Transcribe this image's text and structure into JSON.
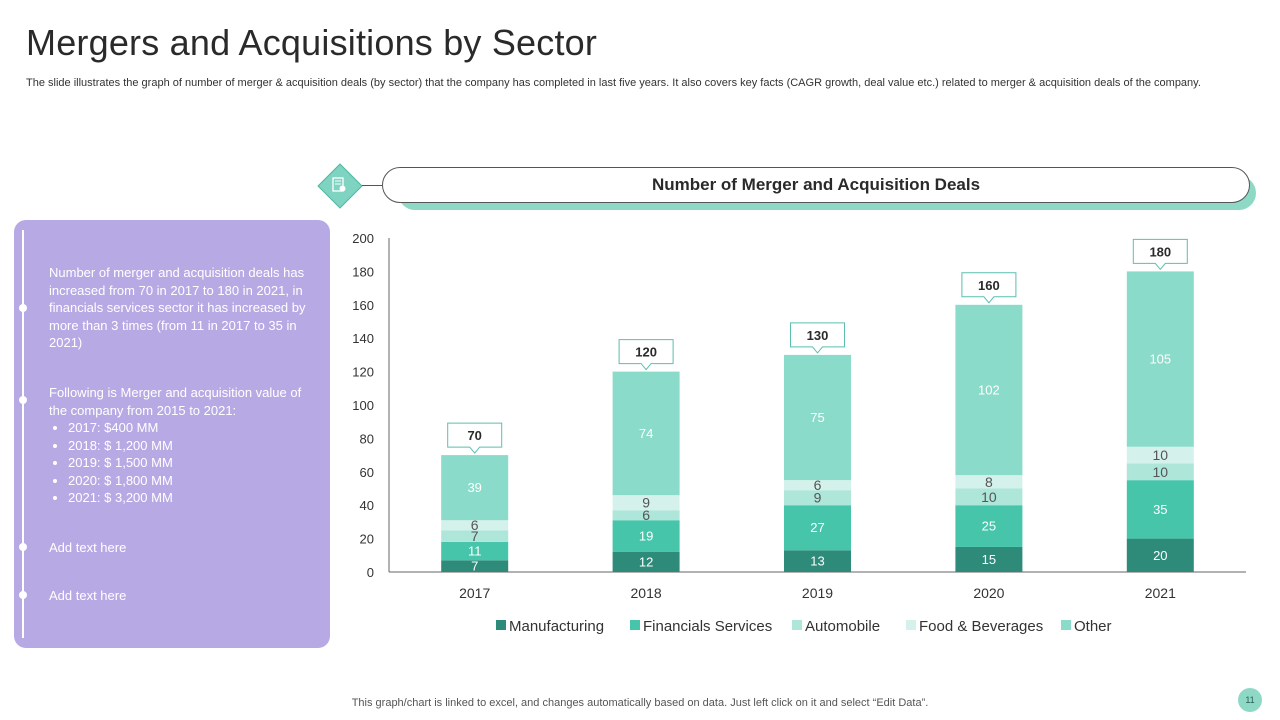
{
  "page": {
    "title": "Mergers and Acquisitions by Sector",
    "subtitle": "The slide illustrates the graph of number of merger & acquisition deals (by sector) that the company has completed in last five years. It also covers key facts (CAGR growth, deal value etc.) related to merger & acquisition deals of the company.",
    "footer": "This graph/chart is linked to excel, and changes automatically based on data. Just left click on it and select “Edit Data”.",
    "page_number": "11"
  },
  "chart_header": {
    "title": "Number of Merger and Acquisition Deals",
    "icon": "document-chart-icon"
  },
  "panel": {
    "point1": "Number of merger and acquisition deals has increased from 70 in 2017 to 180 in 2021, in financials services sector it has increased by more than 3 times (from 11 in 2017 to 35 in 2021)",
    "point2_intro": "Following is Merger and acquisition value of the company from 2015 to 2021:",
    "point2_items": [
      "2017: $400 MM",
      "2018: $ 1,200 MM",
      "2019: $ 1,500 MM",
      "2020: $ 1,800 MM",
      "2021: $ 3,200 MM"
    ],
    "point3": "Add text here",
    "point4": "Add text here"
  },
  "colors": {
    "Manufacturing": "#2e8b79",
    "Financials Services": "#46c5ab",
    "Automobile": "#aee6da",
    "Food & Beverages": "#d4f2eb",
    "Other": "#8adbc9",
    "panel": "#b7a9e4"
  },
  "chart_data": {
    "type": "bar",
    "stacked": true,
    "title": "Number of Merger and Acquisition Deals",
    "categories": [
      "2017",
      "2018",
      "2019",
      "2020",
      "2021"
    ],
    "series": [
      {
        "name": "Manufacturing",
        "values": [
          7,
          12,
          13,
          15,
          20
        ]
      },
      {
        "name": "Financials Services",
        "values": [
          11,
          19,
          27,
          25,
          35
        ]
      },
      {
        "name": "Automobile",
        "values": [
          7,
          6,
          9,
          10,
          10
        ]
      },
      {
        "name": "Food & Beverages",
        "values": [
          6,
          9,
          6,
          8,
          10
        ]
      },
      {
        "name": "Other",
        "values": [
          39,
          74,
          75,
          102,
          105
        ]
      }
    ],
    "totals": [
      70,
      120,
      130,
      160,
      180
    ],
    "yticks": [
      0,
      20,
      40,
      60,
      80,
      100,
      120,
      140,
      160,
      180,
      200
    ],
    "ylim": [
      0,
      200
    ],
    "xlabel": "",
    "ylabel": "",
    "legend": "bottom",
    "grid": false
  }
}
